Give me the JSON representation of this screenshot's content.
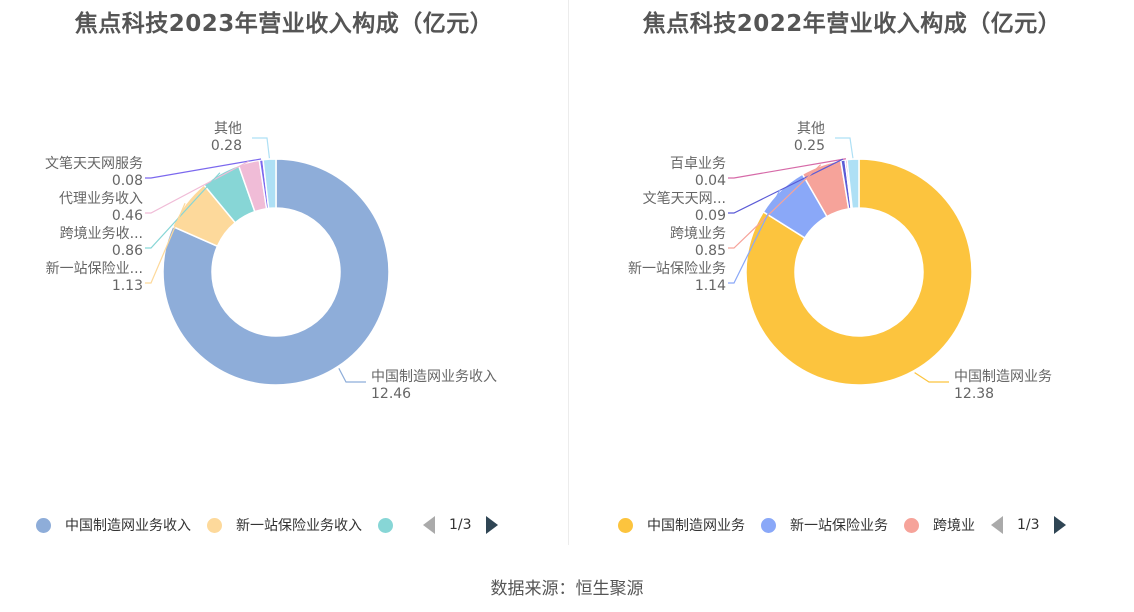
{
  "source_label": "数据来源：恒生聚源",
  "chart_data": [
    {
      "type": "pie",
      "title": "焦点科技2023年营业收入构成（亿元）",
      "series": [
        {
          "name": "中国制造网业务收入",
          "label": "中国制造网业务收入",
          "value": 12.46,
          "value_label": "12.46",
          "color": "#8eadd9"
        },
        {
          "name": "新一站保险业务收入",
          "label": "新一站保险业...",
          "value": 1.13,
          "value_label": "1.13",
          "color": "#fdd99b"
        },
        {
          "name": "跨境业务收入",
          "label": "跨境业务收...",
          "value": 0.86,
          "value_label": "0.86",
          "color": "#87d6d6"
        },
        {
          "name": "代理业务收入",
          "label": "代理业务收入",
          "value": 0.46,
          "value_label": "0.46",
          "color": "#f0bcd7"
        },
        {
          "name": "文笔天天网服务",
          "label": "文笔天天网服务",
          "value": 0.08,
          "value_label": "0.08",
          "color": "#7b68ee"
        },
        {
          "name": "其他",
          "label": "其他",
          "value": 0.28,
          "value_label": "0.28",
          "color": "#aee0f5"
        }
      ],
      "legend": {
        "items": [
          {
            "label": "中国制造网业务收入",
            "color": "#8eadd9"
          },
          {
            "label": "新一站保险业务收入",
            "color": "#fdd99b"
          },
          {
            "label": "",
            "color": "#87d6d6"
          }
        ],
        "page": "1/3"
      }
    },
    {
      "type": "pie",
      "title": "焦点科技2022年营业收入构成（亿元）",
      "series": [
        {
          "name": "中国制造网业务",
          "label": "中国制造网业务",
          "value": 12.38,
          "value_label": "12.38",
          "color": "#fcc43e"
        },
        {
          "name": "新一站保险业务",
          "label": "新一站保险业务",
          "value": 1.14,
          "value_label": "1.14",
          "color": "#8aa8f8"
        },
        {
          "name": "跨境业务",
          "label": "跨境业务",
          "value": 0.85,
          "value_label": "0.85",
          "color": "#f6a39a"
        },
        {
          "name": "文笔天天网",
          "label": "文笔天天网...",
          "value": 0.09,
          "value_label": "0.09",
          "color": "#5b5bd6"
        },
        {
          "name": "百卓业务",
          "label": "百卓业务",
          "value": 0.04,
          "value_label": "0.04",
          "color": "#d66aa8"
        },
        {
          "name": "其他",
          "label": "其他",
          "value": 0.25,
          "value_label": "0.25",
          "color": "#aee0f5"
        }
      ],
      "legend": {
        "items": [
          {
            "label": "中国制造网业务",
            "color": "#fcc43e"
          },
          {
            "label": "新一站保险业务",
            "color": "#8aa8f8"
          },
          {
            "label": "跨境业",
            "color": "#f6a39a"
          }
        ],
        "page": "1/3"
      }
    }
  ]
}
